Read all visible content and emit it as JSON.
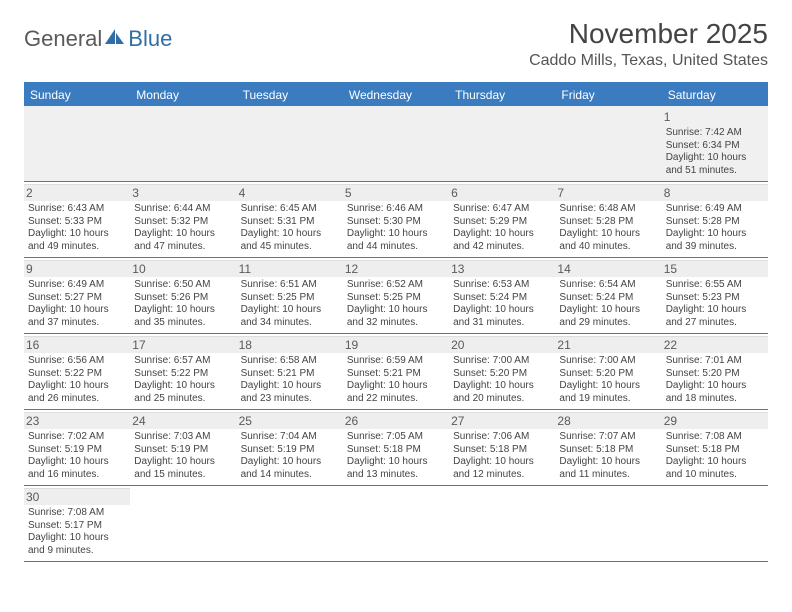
{
  "logo": {
    "text1": "General",
    "text2": "Blue"
  },
  "title": "November 2025",
  "location": "Caddo Mills, Texas, United States",
  "colors": {
    "header_bar": "#3b7bbf",
    "header_text": "#ffffff",
    "daynum_bg": "#eeeeee",
    "first_row_bg": "#f0f0f0",
    "text": "#444444"
  },
  "weekdays": [
    "Sunday",
    "Monday",
    "Tuesday",
    "Wednesday",
    "Thursday",
    "Friday",
    "Saturday"
  ],
  "weeks": [
    [
      null,
      null,
      null,
      null,
      null,
      null,
      {
        "n": "1",
        "sr": "7:42 AM",
        "ss": "6:34 PM",
        "dl": "10 hours and 51 minutes."
      }
    ],
    [
      {
        "n": "2",
        "sr": "6:43 AM",
        "ss": "5:33 PM",
        "dl": "10 hours and 49 minutes."
      },
      {
        "n": "3",
        "sr": "6:44 AM",
        "ss": "5:32 PM",
        "dl": "10 hours and 47 minutes."
      },
      {
        "n": "4",
        "sr": "6:45 AM",
        "ss": "5:31 PM",
        "dl": "10 hours and 45 minutes."
      },
      {
        "n": "5",
        "sr": "6:46 AM",
        "ss": "5:30 PM",
        "dl": "10 hours and 44 minutes."
      },
      {
        "n": "6",
        "sr": "6:47 AM",
        "ss": "5:29 PM",
        "dl": "10 hours and 42 minutes."
      },
      {
        "n": "7",
        "sr": "6:48 AM",
        "ss": "5:28 PM",
        "dl": "10 hours and 40 minutes."
      },
      {
        "n": "8",
        "sr": "6:49 AM",
        "ss": "5:28 PM",
        "dl": "10 hours and 39 minutes."
      }
    ],
    [
      {
        "n": "9",
        "sr": "6:49 AM",
        "ss": "5:27 PM",
        "dl": "10 hours and 37 minutes."
      },
      {
        "n": "10",
        "sr": "6:50 AM",
        "ss": "5:26 PM",
        "dl": "10 hours and 35 minutes."
      },
      {
        "n": "11",
        "sr": "6:51 AM",
        "ss": "5:25 PM",
        "dl": "10 hours and 34 minutes."
      },
      {
        "n": "12",
        "sr": "6:52 AM",
        "ss": "5:25 PM",
        "dl": "10 hours and 32 minutes."
      },
      {
        "n": "13",
        "sr": "6:53 AM",
        "ss": "5:24 PM",
        "dl": "10 hours and 31 minutes."
      },
      {
        "n": "14",
        "sr": "6:54 AM",
        "ss": "5:24 PM",
        "dl": "10 hours and 29 minutes."
      },
      {
        "n": "15",
        "sr": "6:55 AM",
        "ss": "5:23 PM",
        "dl": "10 hours and 27 minutes."
      }
    ],
    [
      {
        "n": "16",
        "sr": "6:56 AM",
        "ss": "5:22 PM",
        "dl": "10 hours and 26 minutes."
      },
      {
        "n": "17",
        "sr": "6:57 AM",
        "ss": "5:22 PM",
        "dl": "10 hours and 25 minutes."
      },
      {
        "n": "18",
        "sr": "6:58 AM",
        "ss": "5:21 PM",
        "dl": "10 hours and 23 minutes."
      },
      {
        "n": "19",
        "sr": "6:59 AM",
        "ss": "5:21 PM",
        "dl": "10 hours and 22 minutes."
      },
      {
        "n": "20",
        "sr": "7:00 AM",
        "ss": "5:20 PM",
        "dl": "10 hours and 20 minutes."
      },
      {
        "n": "21",
        "sr": "7:00 AM",
        "ss": "5:20 PM",
        "dl": "10 hours and 19 minutes."
      },
      {
        "n": "22",
        "sr": "7:01 AM",
        "ss": "5:20 PM",
        "dl": "10 hours and 18 minutes."
      }
    ],
    [
      {
        "n": "23",
        "sr": "7:02 AM",
        "ss": "5:19 PM",
        "dl": "10 hours and 16 minutes."
      },
      {
        "n": "24",
        "sr": "7:03 AM",
        "ss": "5:19 PM",
        "dl": "10 hours and 15 minutes."
      },
      {
        "n": "25",
        "sr": "7:04 AM",
        "ss": "5:19 PM",
        "dl": "10 hours and 14 minutes."
      },
      {
        "n": "26",
        "sr": "7:05 AM",
        "ss": "5:18 PM",
        "dl": "10 hours and 13 minutes."
      },
      {
        "n": "27",
        "sr": "7:06 AM",
        "ss": "5:18 PM",
        "dl": "10 hours and 12 minutes."
      },
      {
        "n": "28",
        "sr": "7:07 AM",
        "ss": "5:18 PM",
        "dl": "10 hours and 11 minutes."
      },
      {
        "n": "29",
        "sr": "7:08 AM",
        "ss": "5:18 PM",
        "dl": "10 hours and 10 minutes."
      }
    ],
    [
      {
        "n": "30",
        "sr": "7:08 AM",
        "ss": "5:17 PM",
        "dl": "10 hours and 9 minutes."
      },
      null,
      null,
      null,
      null,
      null,
      null
    ]
  ],
  "labels": {
    "sunrise": "Sunrise:",
    "sunset": "Sunset:",
    "daylight": "Daylight:"
  }
}
